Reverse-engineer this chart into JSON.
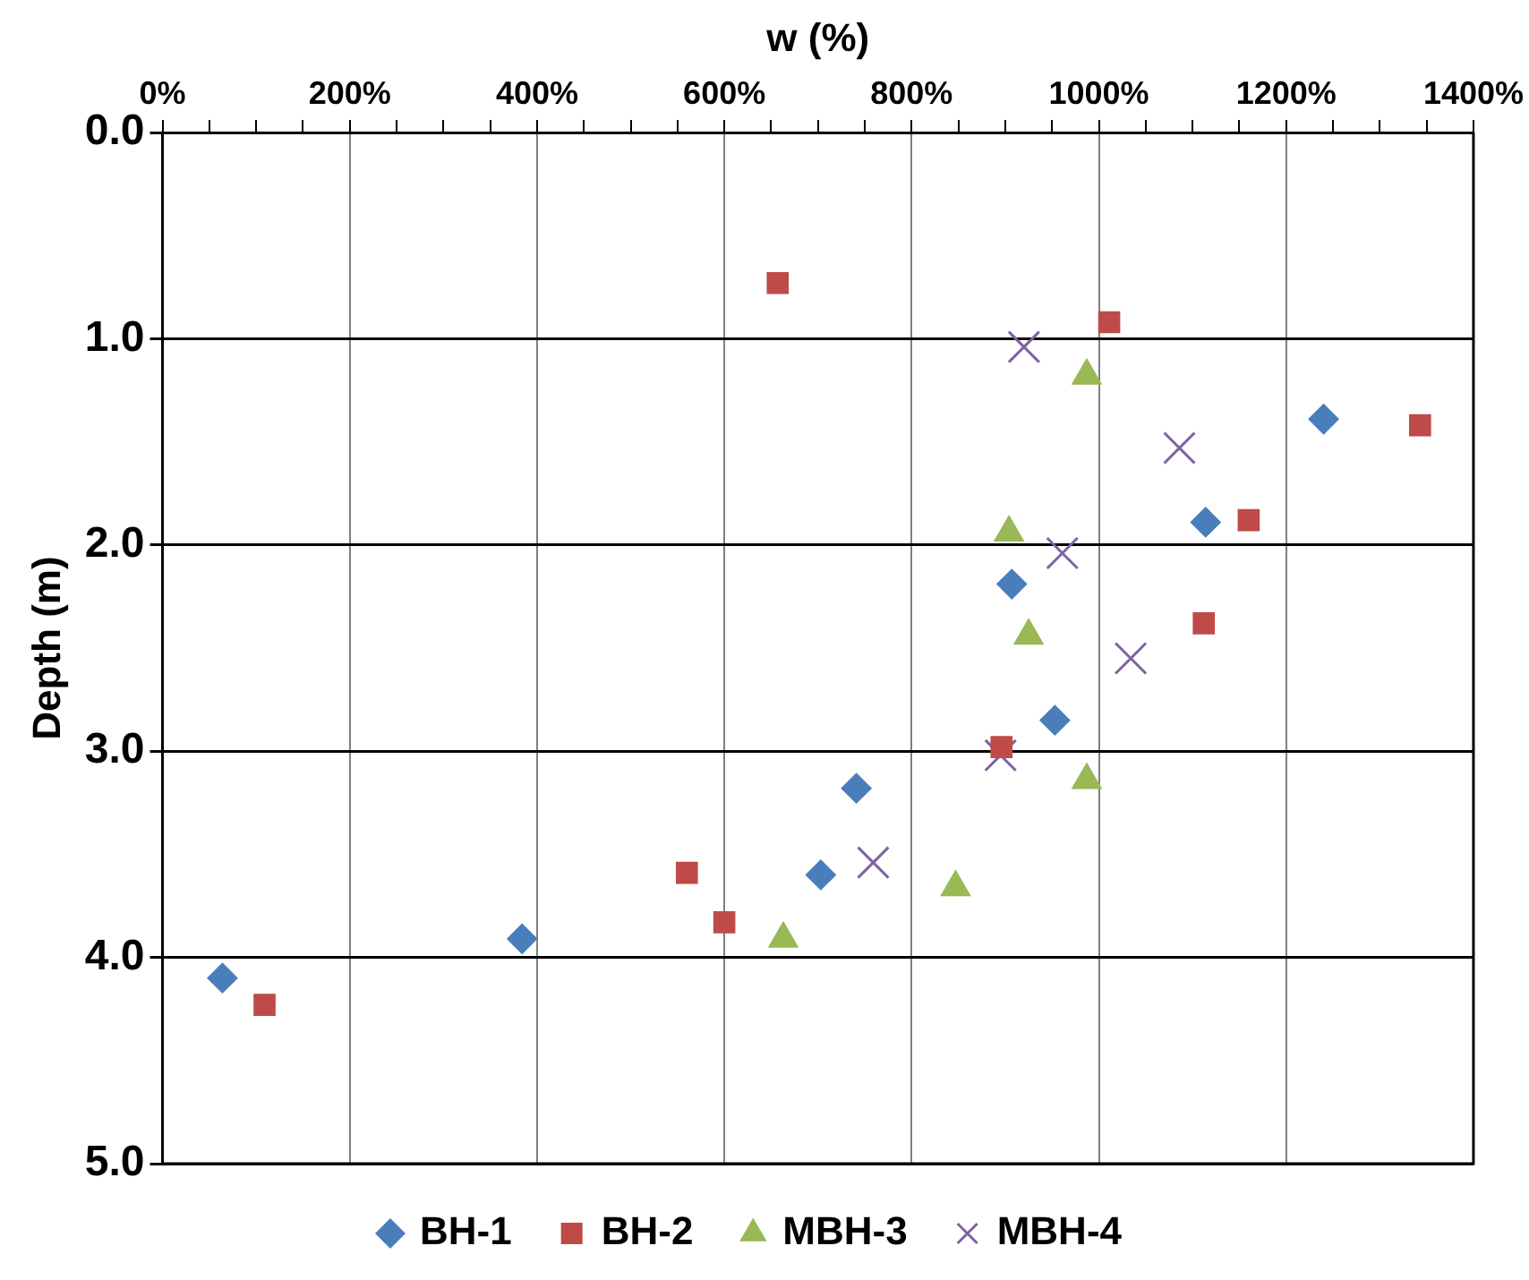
{
  "chart_data": {
    "type": "scatter",
    "xlabel": "w (%)",
    "ylabel": "Depth (m)",
    "xlim": [
      0,
      1400
    ],
    "xticks": [
      {
        "value": 0,
        "label": "0%"
      },
      {
        "value": 50,
        "label": null
      },
      {
        "value": 100,
        "label": null
      },
      {
        "value": 150,
        "label": null
      },
      {
        "value": 200,
        "label": "200%"
      },
      {
        "value": 250,
        "label": null
      },
      {
        "value": 300,
        "label": null
      },
      {
        "value": 350,
        "label": null
      },
      {
        "value": 400,
        "label": "400%"
      },
      {
        "value": 450,
        "label": null
      },
      {
        "value": 500,
        "label": null
      },
      {
        "value": 550,
        "label": null
      },
      {
        "value": 600,
        "label": "600%"
      },
      {
        "value": 650,
        "label": null
      },
      {
        "value": 700,
        "label": null
      },
      {
        "value": 750,
        "label": null
      },
      {
        "value": 800,
        "label": "800%"
      },
      {
        "value": 850,
        "label": null
      },
      {
        "value": 900,
        "label": null
      },
      {
        "value": 950,
        "label": null
      },
      {
        "value": 1000,
        "label": "1000%"
      },
      {
        "value": 1050,
        "label": null
      },
      {
        "value": 1100,
        "label": null
      },
      {
        "value": 1150,
        "label": null
      },
      {
        "value": 1200,
        "label": "1200%"
      },
      {
        "value": 1250,
        "label": null
      },
      {
        "value": 1300,
        "label": null
      },
      {
        "value": 1350,
        "label": null
      },
      {
        "value": 1400,
        "label": "1400%"
      }
    ],
    "ylim": [
      5,
      0
    ],
    "yticks": [
      {
        "value": 0,
        "label": "0.0"
      },
      {
        "value": 1,
        "label": "1.0"
      },
      {
        "value": 2,
        "label": "2.0"
      },
      {
        "value": 3,
        "label": "3.0"
      },
      {
        "value": 4,
        "label": "4.0"
      },
      {
        "value": 5,
        "label": "5.0"
      }
    ],
    "grid": true,
    "legend": "bottom",
    "series": [
      {
        "name": "BH-1",
        "color": "#4a7ebb",
        "marker": "diamond",
        "x": [
          1240,
          1114,
          907,
          953,
          741,
          703,
          384,
          64
        ],
        "values": [
          1.39,
          1.89,
          2.19,
          2.85,
          3.18,
          3.6,
          3.91,
          4.1
        ]
      },
      {
        "name": "BH-2",
        "color": "#be4b48",
        "marker": "square",
        "x": [
          657,
          1011,
          1343,
          1160,
          1112,
          896,
          560,
          600,
          109
        ],
        "values": [
          0.73,
          0.92,
          1.42,
          1.88,
          2.38,
          2.98,
          3.59,
          3.83,
          4.23
        ]
      },
      {
        "name": "MBH-3",
        "color": "#98b954",
        "marker": "triangle",
        "x": [
          987,
          904,
          925,
          987,
          847,
          663
        ],
        "values": [
          1.18,
          1.94,
          2.44,
          3.14,
          3.66,
          3.91
        ]
      },
      {
        "name": "MBH-4",
        "color": "#7e62a1",
        "marker": "cross",
        "x": [
          920,
          1086,
          961,
          1034,
          895,
          759
        ],
        "values": [
          1.04,
          1.53,
          2.04,
          2.55,
          3.02,
          3.54
        ]
      }
    ]
  }
}
